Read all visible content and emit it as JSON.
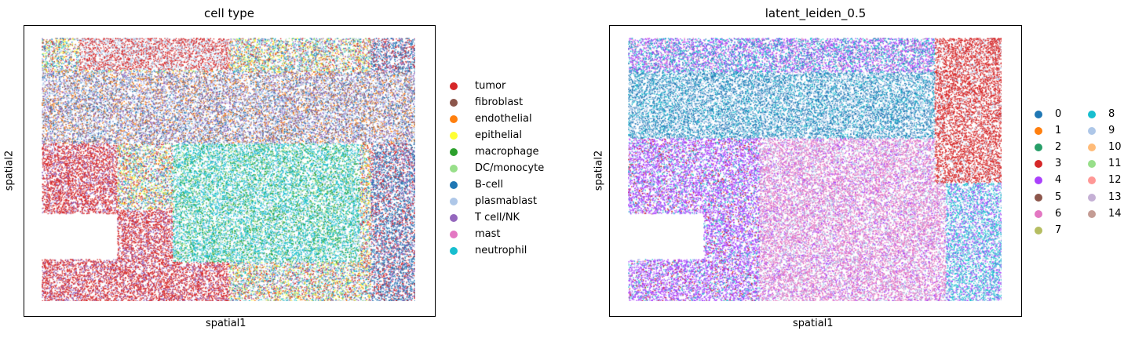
{
  "chart_data": [
    {
      "type": "scatter",
      "title": "cell type",
      "xlabel": "spatial1",
      "ylabel": "spatial2",
      "grid": false,
      "legend_placement": "right",
      "series": [
        {
          "name": "tumor",
          "color": "#d62728"
        },
        {
          "name": "fibroblast",
          "color": "#8c564b"
        },
        {
          "name": "endothelial",
          "color": "#ff7f0e"
        },
        {
          "name": "epithelial",
          "color": "#ffff33"
        },
        {
          "name": "macrophage",
          "color": "#2ca02c"
        },
        {
          "name": "DC/monocyte",
          "color": "#98df8a"
        },
        {
          "name": "B-cell",
          "color": "#1f77b4"
        },
        {
          "name": "plasmablast",
          "color": "#aec7e8"
        },
        {
          "name": "T cell/NK",
          "color": "#9467bd"
        },
        {
          "name": "mast",
          "color": "#e377c2"
        },
        {
          "name": "neutrophil",
          "color": "#17becf"
        }
      ]
    },
    {
      "type": "scatter",
      "title": "latent_leiden_0.5",
      "xlabel": "spatial1",
      "ylabel": "spatial2",
      "grid": false,
      "legend_placement": "right",
      "series": [
        {
          "name": "0",
          "color": "#1f77b4"
        },
        {
          "name": "1",
          "color": "#ff7f0e"
        },
        {
          "name": "2",
          "color": "#279e68"
        },
        {
          "name": "3",
          "color": "#d62728"
        },
        {
          "name": "4",
          "color": "#aa40fc"
        },
        {
          "name": "5",
          "color": "#8c564b"
        },
        {
          "name": "6",
          "color": "#e377c2"
        },
        {
          "name": "7",
          "color": "#b5bd61"
        },
        {
          "name": "8",
          "color": "#17becf"
        },
        {
          "name": "9",
          "color": "#aec7e8"
        },
        {
          "name": "10",
          "color": "#ffbb78"
        },
        {
          "name": "11",
          "color": "#98df8a"
        },
        {
          "name": "12",
          "color": "#ff9896"
        },
        {
          "name": "13",
          "color": "#c5b0d5"
        },
        {
          "name": "14",
          "color": "#c49c94"
        }
      ]
    }
  ]
}
